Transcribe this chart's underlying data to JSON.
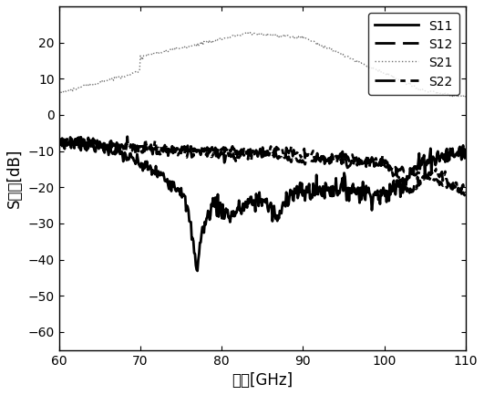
{
  "xlim": [
    60,
    110
  ],
  "ylim": [
    -65,
    30
  ],
  "xlabel": "频率[GHz]",
  "ylabel": "S参数[dB]",
  "xticks": [
    60,
    70,
    80,
    90,
    100,
    110
  ],
  "yticks": [
    -60,
    -50,
    -40,
    -30,
    -20,
    -10,
    0,
    10,
    20
  ],
  "legend_labels": [
    "S11",
    "S12",
    "S21",
    "S22"
  ],
  "background_color": "#ffffff"
}
